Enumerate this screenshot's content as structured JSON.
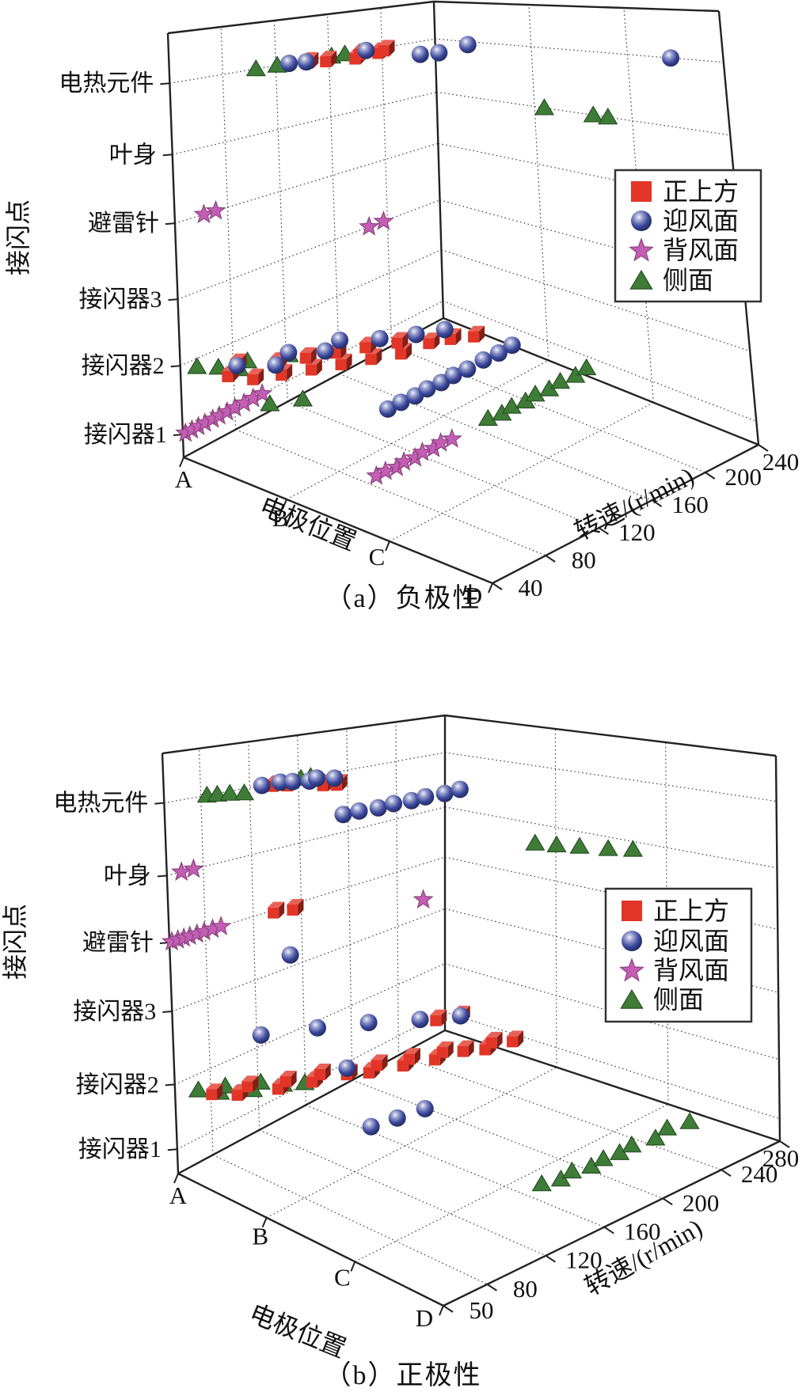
{
  "figure": {
    "description": "Two 3D scatter plots of lightning attachment points vs electrode position and rotation speed",
    "background": "#ffffff"
  },
  "chart_data": [
    {
      "type": "scatter",
      "projection": "3d",
      "caption": "（a）负极性",
      "xlabel": "电极位置",
      "zlabel": "转速/(r/min)",
      "ylabel": "接闪点",
      "x_categories": [
        "A",
        "B",
        "C",
        "D"
      ],
      "y_categories": [
        "接闪器1",
        "接闪器2",
        "接闪器3",
        "避雷针",
        "叶身",
        "电热元件"
      ],
      "rpm_ticks": [
        40,
        80,
        120,
        160,
        200,
        240
      ],
      "rpm_range": [
        40,
        240
      ],
      "grid": true,
      "legend_position": "upper right",
      "point_format": "[electrode_index 0=A..3=D, rpm, attachment_point 1=接闪器1..6=电热元件]",
      "series": [
        {
          "name": "正上方",
          "marker": "cube",
          "color": "#e23527",
          "points": [
            [
              0,
              145,
              6
            ],
            [
              0.05,
              155,
              6
            ],
            [
              0.12,
              172,
              6
            ],
            [
              0,
              184,
              6
            ],
            [
              0.07,
              193,
              6
            ],
            [
              0.02,
              201,
              6
            ],
            [
              0.35,
              50,
              2
            ],
            [
              0.52,
              56,
              2
            ],
            [
              0.25,
              64,
              2
            ],
            [
              0.62,
              70,
              2
            ],
            [
              0.45,
              79,
              2
            ],
            [
              0.72,
              85,
              2
            ],
            [
              0.55,
              94,
              2
            ],
            [
              0.82,
              100,
              2
            ],
            [
              0.65,
              109,
              2
            ],
            [
              0.92,
              115,
              2
            ],
            [
              0.75,
              124,
              2
            ],
            [
              1.02,
              130,
              2
            ],
            [
              0.87,
              139,
              2
            ],
            [
              1.05,
              149,
              2
            ],
            [
              1.12,
              160,
              2
            ],
            [
              1.22,
              170,
              2
            ]
          ]
        },
        {
          "name": "迎风面",
          "marker": "sphere",
          "color": "#3a479c",
          "points": [
            [
              0,
              130,
              6
            ],
            [
              0.04,
              140,
              6
            ],
            [
              0,
              188,
              6
            ],
            [
              0.45,
              196,
              6
            ],
            [
              0.52,
              205,
              6
            ],
            [
              0.45,
              232,
              6
            ],
            [
              2.45,
              240,
              6
            ],
            [
              0.3,
              60,
              2
            ],
            [
              0.5,
              74,
              2
            ],
            [
              0.42,
              90,
              2
            ],
            [
              0.6,
              104,
              2
            ],
            [
              0.55,
              119,
              2
            ],
            [
              0.75,
              134,
              2
            ],
            [
              0.9,
              150,
              2
            ],
            [
              1.0,
              164,
              2
            ],
            [
              0.85,
              130,
              1
            ],
            [
              0.85,
              140,
              1
            ],
            [
              0.86,
              150,
              1
            ],
            [
              0.85,
              160,
              1
            ],
            [
              0.86,
              170,
              1
            ],
            [
              0.85,
              180,
              1
            ],
            [
              0.86,
              190,
              1
            ],
            [
              0.85,
              203,
              1
            ],
            [
              0.86,
              214,
              1
            ],
            [
              0.85,
              225,
              1
            ]
          ]
        },
        {
          "name": "背风面",
          "marker": "star",
          "color": "#c45eb4",
          "points": [
            [
              0,
              62,
              4
            ],
            [
              0,
              71,
              4
            ],
            [
              0,
              186,
              3
            ],
            [
              0,
              197,
              3
            ],
            [
              0,
              42,
              1
            ],
            [
              0,
              47,
              1
            ],
            [
              0,
              52,
              1
            ],
            [
              0,
              57,
              1
            ],
            [
              0,
              63,
              1
            ],
            [
              0,
              68,
              1
            ],
            [
              0,
              74,
              1
            ],
            [
              0,
              80,
              1
            ],
            [
              0,
              87,
              1
            ],
            [
              0,
              94,
              1
            ],
            [
              0,
              101,
              1
            ],
            [
              1.5,
              70,
              1
            ],
            [
              1.5,
              77,
              1
            ],
            [
              1.52,
              84,
              1
            ],
            [
              1.5,
              91,
              1
            ],
            [
              1.52,
              98,
              1
            ],
            [
              1.5,
              105,
              1
            ],
            [
              1.52,
              112,
              1
            ],
            [
              1.5,
              119,
              1
            ],
            [
              1.52,
              126,
              1
            ]
          ]
        },
        {
          "name": "侧面",
          "marker": "triangle",
          "color": "#3e7c37",
          "points": [
            [
              0,
              105,
              6
            ],
            [
              0,
              121,
              6
            ],
            [
              0,
              162,
              6
            ],
            [
              0,
              172,
              6
            ],
            [
              1.1,
              240,
              5
            ],
            [
              1.6,
              240,
              5
            ],
            [
              1.75,
              240,
              5
            ],
            [
              0.1,
              45,
              2
            ],
            [
              0.22,
              52,
              2
            ],
            [
              0.35,
              58,
              2
            ],
            [
              0.3,
              68,
              2
            ],
            [
              0.5,
              76,
              2
            ],
            [
              0.45,
              88,
              2
            ],
            [
              0.15,
              95,
              1
            ],
            [
              0.28,
              110,
              1
            ],
            [
              1.5,
              155,
              1
            ],
            [
              1.52,
              164,
              1
            ],
            [
              1.5,
              173,
              1
            ],
            [
              1.52,
              182,
              1
            ],
            [
              1.5,
              191,
              1
            ],
            [
              1.52,
              200,
              1
            ],
            [
              1.5,
              210,
              1
            ],
            [
              1.52,
              220,
              1
            ],
            [
              1.5,
              230,
              1
            ]
          ]
        }
      ]
    },
    {
      "type": "scatter",
      "projection": "3d",
      "caption": "（b）正极性",
      "xlabel": "电极位置",
      "zlabel": "转速/(r/min)",
      "ylabel": "接闪点",
      "x_categories": [
        "A",
        "B",
        "C",
        "D"
      ],
      "y_categories": [
        "接闪器1",
        "接闪器2",
        "接闪器3",
        "避雷针",
        "叶身",
        "电热元件"
      ],
      "rpm_ticks": [
        50,
        80,
        120,
        160,
        200,
        240,
        280
      ],
      "rpm_range": [
        50,
        280
      ],
      "grid": true,
      "legend_position": "middle right",
      "point_format": "[electrode_index 0=A..3=D, rpm, attachment_point 1=接闪器1..6=电热元件]",
      "series": [
        {
          "name": "正上方",
          "marker": "cube",
          "color": "#e23527",
          "points": [
            [
              0,
              140,
              6
            ],
            [
              0.05,
              148,
              6
            ],
            [
              0.2,
              165,
              6
            ],
            [
              0.25,
              172,
              6
            ],
            [
              0,
              138,
              4
            ],
            [
              0.05,
              150,
              4
            ],
            [
              0.3,
              60,
              2
            ],
            [
              0.45,
              70,
              2
            ],
            [
              0.4,
              82,
              2
            ],
            [
              0.6,
              92,
              2
            ],
            [
              0.55,
              102,
              2
            ],
            [
              0.7,
              112,
              2
            ],
            [
              0.65,
              122,
              2
            ],
            [
              0.8,
              132,
              2
            ],
            [
              0.9,
              142,
              2
            ],
            [
              0.85,
              152,
              2
            ],
            [
              1.0,
              161,
              2
            ],
            [
              0.95,
              170,
              2
            ],
            [
              1.1,
              178,
              2
            ],
            [
              1.05,
              188,
              2
            ],
            [
              1.15,
              196,
              2
            ],
            [
              1.25,
              205,
              2
            ],
            [
              1.2,
              214,
              2
            ],
            [
              1.3,
              222,
              2
            ],
            [
              0.62,
              218,
              2
            ],
            [
              0.7,
              230,
              2
            ]
          ]
        },
        {
          "name": "迎风面",
          "marker": "sphere",
          "color": "#3a479c",
          "points": [
            [
              0,
              130,
              6
            ],
            [
              0,
              145,
              6
            ],
            [
              0.04,
              152,
              6
            ],
            [
              0.1,
              161,
              6
            ],
            [
              0.06,
              170,
              6
            ],
            [
              0.14,
              178,
              6
            ],
            [
              1.0,
              120,
              6
            ],
            [
              1.0,
              132,
              6
            ],
            [
              1.02,
              145,
              6
            ],
            [
              1.0,
              158,
              6
            ],
            [
              1.02,
              170,
              6
            ],
            [
              1.0,
              182,
              6
            ],
            [
              1.02,
              195,
              6
            ],
            [
              1.0,
              208,
              6
            ],
            [
              0.8,
              65,
              3
            ],
            [
              1.0,
              95,
              3
            ],
            [
              1.2,
              120,
              3
            ],
            [
              1.6,
              160,
              3
            ],
            [
              0.8,
              90,
              4
            ],
            [
              0.75,
              135,
              2
            ],
            [
              0.55,
              210,
              2
            ],
            [
              0.85,
              145,
              1
            ],
            [
              0.9,
              162,
              1
            ],
            [
              0.95,
              180,
              1
            ]
          ]
        },
        {
          "name": "背风面",
          "marker": "star",
          "color": "#c45eb4",
          "points": [
            [
              0,
              62,
              5
            ],
            [
              0,
              72,
              5
            ],
            [
              0,
              52,
              4
            ],
            [
              0,
              57,
              4
            ],
            [
              0,
              62,
              4
            ],
            [
              0,
              67,
              4
            ],
            [
              0,
              73,
              4
            ],
            [
              0,
              79,
              4
            ],
            [
              0,
              86,
              4
            ],
            [
              0,
              93,
              4
            ],
            [
              0.6,
              210,
              4
            ]
          ]
        },
        {
          "name": "侧面",
          "marker": "triangle",
          "color": "#3e7c37",
          "points": [
            [
              0,
              85,
              6
            ],
            [
              0.02,
              92,
              6
            ],
            [
              0.05,
              100,
              6
            ],
            [
              0.1,
              108,
              6
            ],
            [
              0,
              162,
              6
            ],
            [
              0,
              170,
              6
            ],
            [
              1.2,
              248,
              5
            ],
            [
              1.35,
              252,
              5
            ],
            [
              1.5,
              257,
              5
            ],
            [
              1.7,
              262,
              5
            ],
            [
              1.85,
              268,
              5
            ],
            [
              0.2,
              55,
              2
            ],
            [
              0.35,
              62,
              2
            ],
            [
              0.3,
              70,
              2
            ],
            [
              0.5,
              78,
              2
            ],
            [
              0.45,
              88,
              2
            ],
            [
              0.6,
              95,
              2
            ],
            [
              0.7,
              105,
              2
            ],
            [
              2.45,
              155,
              1
            ],
            [
              2.5,
              165,
              1
            ],
            [
              2.47,
              175,
              1
            ],
            [
              2.52,
              185,
              1
            ],
            [
              2.5,
              195,
              1
            ],
            [
              2.52,
              205,
              1
            ],
            [
              2.5,
              215,
              1
            ],
            [
              2.55,
              228,
              1
            ],
            [
              2.5,
              240,
              1
            ],
            [
              2.55,
              252,
              1
            ]
          ]
        }
      ]
    }
  ]
}
